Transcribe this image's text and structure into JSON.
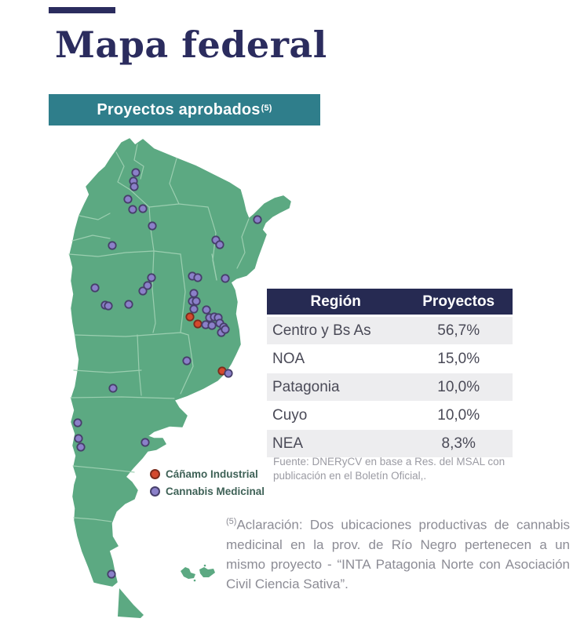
{
  "header": {
    "title": "Mapa federal"
  },
  "banner": {
    "label": "Proyectos aprobados",
    "footnote_ref": "(5)"
  },
  "legend": {
    "items": [
      {
        "id": "canamo-industrial",
        "label": "Cáñamo Industrial",
        "color": "#d4492e",
        "stroke": "#7c2c1d"
      },
      {
        "id": "cannabis-medicinal",
        "label": "Cannabis Medicinal",
        "color": "#8b80c9",
        "stroke": "#473f6b"
      }
    ]
  },
  "table": {
    "headers": [
      "Región",
      "Proyectos"
    ],
    "rows": [
      [
        "Centro y Bs As",
        "56,7%"
      ],
      [
        "NOA",
        "15,0%"
      ],
      [
        "Patagonia",
        "10,0%"
      ],
      [
        "Cuyo",
        "10,0%"
      ],
      [
        "NEA",
        "8,3%"
      ]
    ]
  },
  "source": {
    "text": "Fuente: DNERyCV en base a Res. del MSAL con publicación  en el Boletín Oficial,."
  },
  "footnote": {
    "ref": "(5)",
    "text": "Aclaración: Dos ubicaciones productivas de cannabis medicinal en la prov. de Río Negro pertenecen a un mismo proyecto - “INTA Patagonia Norte con Asociación Civil Ciencia Sativa”."
  },
  "map": {
    "country": "Argentina",
    "fill": "#5ca982",
    "border_color": "#9fd1b3",
    "coordinate_space": "svg 300x630 placed at (80,172)",
    "points": {
      "canamo_industrial": [
        [
          162,
          232
        ],
        [
          172,
          241
        ],
        [
          203,
          301
        ]
      ],
      "cannabis_medicinal": [
        [
          93,
          48
        ],
        [
          90,
          59
        ],
        [
          91,
          66
        ],
        [
          83,
          82
        ],
        [
          89,
          95
        ],
        [
          102,
          94
        ],
        [
          114,
          116
        ],
        [
          63,
          141
        ],
        [
          248,
          108
        ],
        [
          195,
          134
        ],
        [
          200,
          140
        ],
        [
          165,
          180
        ],
        [
          172,
          182
        ],
        [
          207,
          183
        ],
        [
          167,
          202
        ],
        [
          165,
          212
        ],
        [
          170,
          212
        ],
        [
          167,
          222
        ],
        [
          183,
          223
        ],
        [
          187,
          233
        ],
        [
          193,
          232
        ],
        [
          198,
          233
        ],
        [
          182,
          242
        ],
        [
          190,
          243
        ],
        [
          200,
          240
        ],
        [
          205,
          245
        ],
        [
          202,
          252
        ],
        [
          207,
          248
        ],
        [
          158,
          288
        ],
        [
          211,
          304
        ],
        [
          41,
          195
        ],
        [
          54,
          217
        ],
        [
          58,
          218
        ],
        [
          84,
          216
        ],
        [
          102,
          199
        ],
        [
          108,
          192
        ],
        [
          113,
          182
        ],
        [
          64,
          323
        ],
        [
          19,
          367
        ],
        [
          20,
          387
        ],
        [
          23,
          398
        ],
        [
          105,
          392
        ],
        [
          62,
          560
        ]
      ]
    }
  },
  "chart_data": {
    "type": "table",
    "title": "Proyectos aprobados (5)",
    "columns": [
      "Región",
      "Proyectos"
    ],
    "categories": [
      "Centro y Bs As",
      "NOA",
      "Patagonia",
      "Cuyo",
      "NEA"
    ],
    "values": [
      56.7,
      15.0,
      10.0,
      10.0,
      8.3
    ],
    "unit": "%",
    "legend_position": "left of table, below map",
    "point_counts": {
      "canamo_industrial": 3,
      "cannabis_medicinal": 43
    }
  },
  "colors": {
    "navy": "#2b2c5e",
    "teal_banner": "#2f7e8b",
    "table_header_bg": "#262a52",
    "row_alt_bg": "#ededef",
    "body_text": "#4a4a57",
    "muted_text": "#9b9ba3",
    "footnote_text": "#8c8c95",
    "legend_text": "#3e6156",
    "map_green": "#5ca982"
  }
}
